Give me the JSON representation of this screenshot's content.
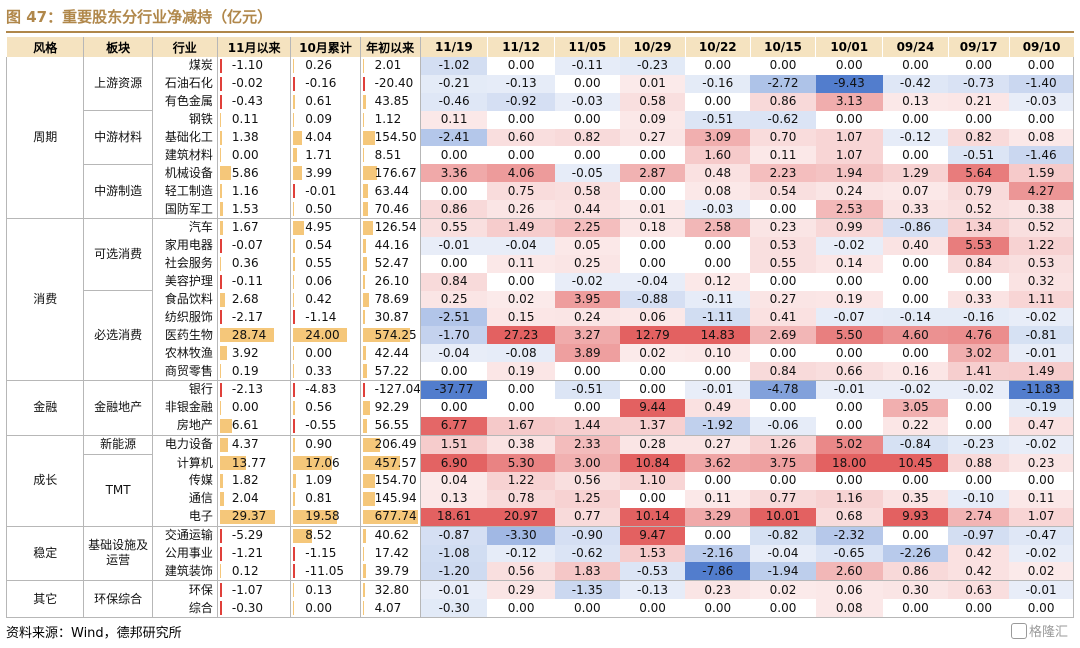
{
  "title": "图 47：重要股东分行业净减持（亿元）",
  "source": "资料来源：Wind，德邦研究所",
  "watermark": "格隆汇",
  "colors": {
    "header_bg": "#f5e3c0",
    "title": "#b0874a",
    "bar": "#f5c77a",
    "bar_neg": "#e0403a",
    "pos_heat": "#e05050",
    "neg_heat": "#3f6fc8"
  },
  "headers": [
    "风格",
    "板块",
    "行业",
    "11月以来",
    "10月累计",
    "年初以来",
    "11/19",
    "11/12",
    "11/05",
    "10/29",
    "10/22",
    "10/15",
    "10/01",
    "09/24",
    "09/17",
    "09/10"
  ],
  "groups": [
    {
      "style": "周期",
      "sectors": [
        {
          "name": "上游资源",
          "rows": [
            {
              "industry": "煤炭",
              "since_nov": "-1.10",
              "oct": "0.26",
              "ytd": "2.01",
              "weekly": [
                "-1.02",
                "0.00",
                "-0.11",
                "-0.23",
                "0.00",
                "0.00",
                "0.00",
                "0.00",
                "0.00",
                "0.00"
              ]
            },
            {
              "industry": "石油石化",
              "since_nov": "-0.02",
              "oct": "-0.16",
              "ytd": "-20.40",
              "weekly": [
                "-0.21",
                "-0.13",
                "0.00",
                "0.01",
                "-0.16",
                "-2.72",
                "-9.43",
                "-0.42",
                "-0.73",
                "-1.40"
              ]
            },
            {
              "industry": "有色金属",
              "since_nov": "-0.43",
              "oct": "0.61",
              "ytd": "43.85",
              "weekly": [
                "-0.46",
                "-0.92",
                "-0.03",
                "0.58",
                "0.00",
                "0.86",
                "3.13",
                "0.13",
                "0.21",
                "-0.03"
              ]
            }
          ]
        },
        {
          "name": "中游材料",
          "rows": [
            {
              "industry": "钢铁",
              "since_nov": "0.11",
              "oct": "0.09",
              "ytd": "1.12",
              "weekly": [
                "0.11",
                "0.00",
                "0.00",
                "0.09",
                "-0.51",
                "-0.62",
                "0.00",
                "0.00",
                "0.00",
                "0.00"
              ]
            },
            {
              "industry": "基础化工",
              "since_nov": "1.38",
              "oct": "4.04",
              "ytd": "154.50",
              "weekly": [
                "-2.41",
                "0.60",
                "0.82",
                "0.27",
                "3.09",
                "0.70",
                "1.07",
                "-0.12",
                "0.82",
                "0.08"
              ]
            },
            {
              "industry": "建筑材料",
              "since_nov": "0.00",
              "oct": "1.71",
              "ytd": "8.51",
              "weekly": [
                "0.00",
                "0.00",
                "0.00",
                "0.00",
                "1.60",
                "0.11",
                "1.07",
                "0.00",
                "-0.51",
                "-1.46"
              ]
            }
          ]
        },
        {
          "name": "中游制造",
          "rows": [
            {
              "industry": "机械设备",
              "since_nov": "5.86",
              "oct": "3.99",
              "ytd": "176.67",
              "weekly": [
                "3.36",
                "4.06",
                "-0.05",
                "2.87",
                "0.48",
                "2.23",
                "1.94",
                "1.29",
                "5.64",
                "1.59"
              ]
            },
            {
              "industry": "轻工制造",
              "since_nov": "1.16",
              "oct": "-0.01",
              "ytd": "63.44",
              "weekly": [
                "0.00",
                "0.75",
                "0.58",
                "0.00",
                "0.08",
                "0.54",
                "0.24",
                "0.07",
                "0.79",
                "4.27"
              ]
            },
            {
              "industry": "国防军工",
              "since_nov": "1.53",
              "oct": "0.50",
              "ytd": "70.46",
              "weekly": [
                "0.86",
                "0.26",
                "0.44",
                "0.01",
                "-0.03",
                "0.00",
                "2.53",
                "0.33",
                "0.52",
                "0.38"
              ]
            }
          ]
        }
      ]
    },
    {
      "style": "消费",
      "sectors": [
        {
          "name": "可选消费",
          "rows": [
            {
              "industry": "汽车",
              "since_nov": "1.67",
              "oct": "4.95",
              "ytd": "126.54",
              "weekly": [
                "0.55",
                "1.49",
                "2.25",
                "0.18",
                "2.58",
                "0.23",
                "0.99",
                "-0.86",
                "1.34",
                "0.52"
              ]
            },
            {
              "industry": "家用电器",
              "since_nov": "-0.07",
              "oct": "0.54",
              "ytd": "44.16",
              "weekly": [
                "-0.01",
                "-0.04",
                "0.05",
                "0.00",
                "0.00",
                "0.53",
                "-0.02",
                "0.40",
                "5.53",
                "1.22"
              ]
            },
            {
              "industry": "社会服务",
              "since_nov": "0.36",
              "oct": "0.55",
              "ytd": "52.47",
              "weekly": [
                "0.00",
                "0.11",
                "0.25",
                "0.00",
                "0.00",
                "0.55",
                "0.14",
                "0.00",
                "0.84",
                "0.53"
              ]
            },
            {
              "industry": "美容护理",
              "since_nov": "-0.11",
              "oct": "0.06",
              "ytd": "26.10",
              "weekly": [
                "0.84",
                "0.00",
                "-0.02",
                "-0.04",
                "0.12",
                "0.00",
                "0.00",
                "0.00",
                "0.00",
                "0.32"
              ]
            }
          ]
        },
        {
          "name": "必选消费",
          "rows": [
            {
              "industry": "食品饮料",
              "since_nov": "2.68",
              "oct": "0.42",
              "ytd": "78.69",
              "weekly": [
                "0.25",
                "0.02",
                "3.95",
                "-0.88",
                "-0.11",
                "0.27",
                "0.19",
                "0.00",
                "0.33",
                "1.11"
              ]
            },
            {
              "industry": "纺织服饰",
              "since_nov": "-2.17",
              "oct": "-1.14",
              "ytd": "30.87",
              "weekly": [
                "-2.51",
                "0.15",
                "0.24",
                "0.06",
                "-1.11",
                "0.41",
                "-0.07",
                "-0.14",
                "-0.16",
                "-0.02"
              ]
            },
            {
              "industry": "医药生物",
              "since_nov": "28.74",
              "oct": "24.00",
              "ytd": "574.25",
              "weekly": [
                "-1.70",
                "27.23",
                "3.27",
                "12.79",
                "14.83",
                "2.69",
                "5.50",
                "4.60",
                "4.76",
                "-0.81"
              ]
            },
            {
              "industry": "农林牧渔",
              "since_nov": "3.92",
              "oct": "0.00",
              "ytd": "42.44",
              "weekly": [
                "-0.04",
                "-0.08",
                "3.89",
                "0.02",
                "0.10",
                "0.00",
                "0.00",
                "0.00",
                "3.02",
                "-0.01"
              ]
            },
            {
              "industry": "商贸零售",
              "since_nov": "0.19",
              "oct": "0.33",
              "ytd": "57.22",
              "weekly": [
                "0.00",
                "0.19",
                "0.00",
                "0.00",
                "0.00",
                "0.84",
                "0.66",
                "0.16",
                "1.41",
                "1.49"
              ]
            }
          ]
        }
      ]
    },
    {
      "style": "金融",
      "sectors": [
        {
          "name": "金融地产",
          "rows": [
            {
              "industry": "银行",
              "since_nov": "-2.13",
              "oct": "-4.83",
              "ytd": "-127.04",
              "weekly": [
                "-37.77",
                "0.00",
                "-0.51",
                "0.00",
                "-0.01",
                "-4.78",
                "-0.01",
                "-0.02",
                "-0.02",
                "-11.83"
              ]
            },
            {
              "industry": "非银金融",
              "since_nov": "0.00",
              "oct": "0.56",
              "ytd": "92.29",
              "weekly": [
                "0.00",
                "0.00",
                "0.00",
                "9.44",
                "0.49",
                "0.00",
                "0.00",
                "3.05",
                "0.00",
                "-0.19"
              ]
            },
            {
              "industry": "房地产",
              "since_nov": "6.61",
              "oct": "-0.55",
              "ytd": "56.55",
              "weekly": [
                "6.77",
                "1.67",
                "1.44",
                "1.37",
                "-1.92",
                "-0.06",
                "0.00",
                "0.22",
                "0.00",
                "0.47"
              ]
            }
          ]
        }
      ]
    },
    {
      "style": "成长",
      "sectors": [
        {
          "name": "新能源",
          "rows": [
            {
              "industry": "电力设备",
              "since_nov": "4.37",
              "oct": "0.90",
              "ytd": "206.49",
              "weekly": [
                "1.51",
                "0.38",
                "2.33",
                "0.28",
                "0.27",
                "1.26",
                "5.02",
                "-0.84",
                "-0.23",
                "-0.02"
              ]
            }
          ]
        },
        {
          "name": "TMT",
          "rows": [
            {
              "industry": "计算机",
              "since_nov": "13.77",
              "oct": "17.06",
              "ytd": "457.57",
              "weekly": [
                "6.90",
                "5.30",
                "3.00",
                "10.84",
                "3.62",
                "3.75",
                "18.00",
                "10.45",
                "0.88",
                "0.23"
              ]
            },
            {
              "industry": "传媒",
              "since_nov": "1.82",
              "oct": "1.09",
              "ytd": "154.70",
              "weekly": [
                "0.04",
                "1.22",
                "0.56",
                "1.10",
                "0.00",
                "0.00",
                "0.00",
                "0.00",
                "0.00",
                "0.00"
              ]
            },
            {
              "industry": "通信",
              "since_nov": "2.04",
              "oct": "0.81",
              "ytd": "145.94",
              "weekly": [
                "0.13",
                "0.78",
                "1.25",
                "0.00",
                "0.11",
                "0.77",
                "1.16",
                "0.35",
                "-0.10",
                "0.11"
              ]
            },
            {
              "industry": "电子",
              "since_nov": "29.37",
              "oct": "19.58",
              "ytd": "677.74",
              "weekly": [
                "18.61",
                "20.97",
                "0.77",
                "10.14",
                "3.29",
                "10.01",
                "0.68",
                "9.93",
                "2.74",
                "1.07"
              ]
            }
          ]
        }
      ]
    },
    {
      "style": "稳定",
      "sectors": [
        {
          "name": "基础设施及运营",
          "rows": [
            {
              "industry": "交通运输",
              "since_nov": "-5.29",
              "oct": "8.52",
              "ytd": "40.62",
              "weekly": [
                "-0.87",
                "-3.30",
                "-0.90",
                "9.47",
                "0.00",
                "-0.82",
                "-2.32",
                "0.00",
                "-0.97",
                "-0.47"
              ]
            },
            {
              "industry": "公用事业",
              "since_nov": "-1.21",
              "oct": "-1.15",
              "ytd": "17.42",
              "weekly": [
                "-1.08",
                "-0.12",
                "-0.62",
                "1.53",
                "-2.16",
                "-0.04",
                "-0.65",
                "-2.26",
                "0.42",
                "-0.02"
              ]
            },
            {
              "industry": "建筑装饰",
              "since_nov": "0.12",
              "oct": "-11.05",
              "ytd": "39.79",
              "weekly": [
                "-1.20",
                "0.56",
                "1.83",
                "-0.53",
                "-7.86",
                "-1.94",
                "2.60",
                "0.86",
                "0.42",
                "0.02"
              ]
            }
          ]
        }
      ]
    },
    {
      "style": "其它",
      "sectors": [
        {
          "name": "环保综合",
          "rows": [
            {
              "industry": "环保",
              "since_nov": "-1.07",
              "oct": "0.13",
              "ytd": "32.80",
              "weekly": [
                "-0.01",
                "0.29",
                "-1.35",
                "-0.13",
                "0.23",
                "0.02",
                "0.06",
                "0.30",
                "0.63",
                "-0.01"
              ]
            },
            {
              "industry": "综合",
              "since_nov": "-0.30",
              "oct": "0.00",
              "ytd": "4.07",
              "weekly": [
                "-0.30",
                "0.00",
                "0.00",
                "0.00",
                "0.00",
                "0.00",
                "0.08",
                "0.00",
                "0.00",
                "0.00"
              ]
            }
          ]
        }
      ]
    }
  ]
}
